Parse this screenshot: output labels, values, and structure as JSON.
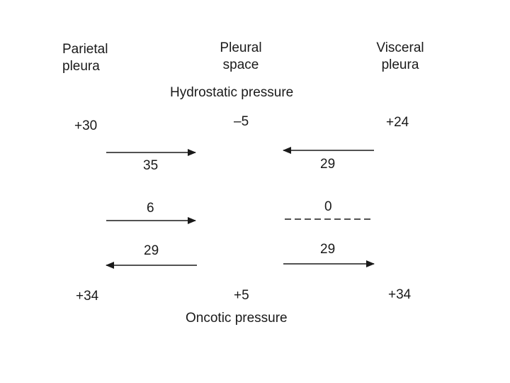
{
  "headers": {
    "parietal": "Parietal\npleura",
    "pleural": "Pleural\nspace",
    "visceral": "Visceral\npleura"
  },
  "hydrostatic_label": "Hydrostatic pressure",
  "oncotic_label": "Oncotic pressure",
  "hydrostatic_values": {
    "parietal": "+30",
    "pleural": "–5",
    "visceral": "+24"
  },
  "oncotic_values": {
    "parietal": "+34",
    "pleural": "+5",
    "visceral": "+34"
  },
  "gradients": {
    "hydrostatic_left": "35",
    "hydrostatic_right": "29",
    "net_left": "6",
    "net_right": "0",
    "oncotic_left": "29",
    "oncotic_right": "29"
  }
}
